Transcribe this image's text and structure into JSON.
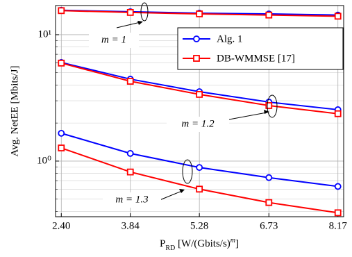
{
  "chart_data": {
    "type": "line",
    "x_label": [
      "P",
      "RD",
      " [W/(Gbits/s)",
      "m",
      "]"
    ],
    "y_label": "Avg. NetEE [Mbits/J]",
    "x": [
      2.4,
      3.84,
      5.28,
      6.73,
      8.17
    ],
    "xlim": [
      2.28,
      8.29
    ],
    "xticks": [
      {
        "value": 2.4,
        "label": "2.40"
      },
      3.84,
      5.28,
      6.73,
      8.17
    ],
    "ylim": [
      0.363,
      17
    ],
    "yscale": "log",
    "yticks": [
      {
        "value": 1,
        "label": "10⁰"
      },
      {
        "value": 10,
        "label": "10¹"
      }
    ],
    "yminorticks": [
      0.4,
      0.5,
      0.6,
      0.7,
      0.8,
      0.9,
      2,
      3,
      4,
      5,
      6,
      7,
      8,
      9
    ],
    "grid": true,
    "legend": "upper right",
    "series": [
      {
        "name": "Alg. 1",
        "color": "#0000ff",
        "marker": "circle",
        "values": [
          [
            15.6,
            15.2,
            14.8,
            14.6,
            14.3
          ],
          [
            6.03,
            4.45,
            3.54,
            2.93,
            2.55
          ],
          [
            1.66,
            1.15,
            0.89,
            0.74,
            0.63
          ]
        ]
      },
      {
        "name": "DB-WMMSE [17]",
        "color": "#ff0000",
        "marker": "square",
        "values": [
          [
            15.5,
            15.0,
            14.6,
            14.3,
            14.0
          ],
          [
            5.96,
            4.28,
            3.37,
            2.75,
            2.37
          ],
          [
            1.27,
            0.82,
            0.6,
            0.47,
            0.39
          ]
        ]
      }
    ],
    "annotations": [
      "m = 1",
      "m = 1.2",
      "m = 1.3"
    ]
  }
}
